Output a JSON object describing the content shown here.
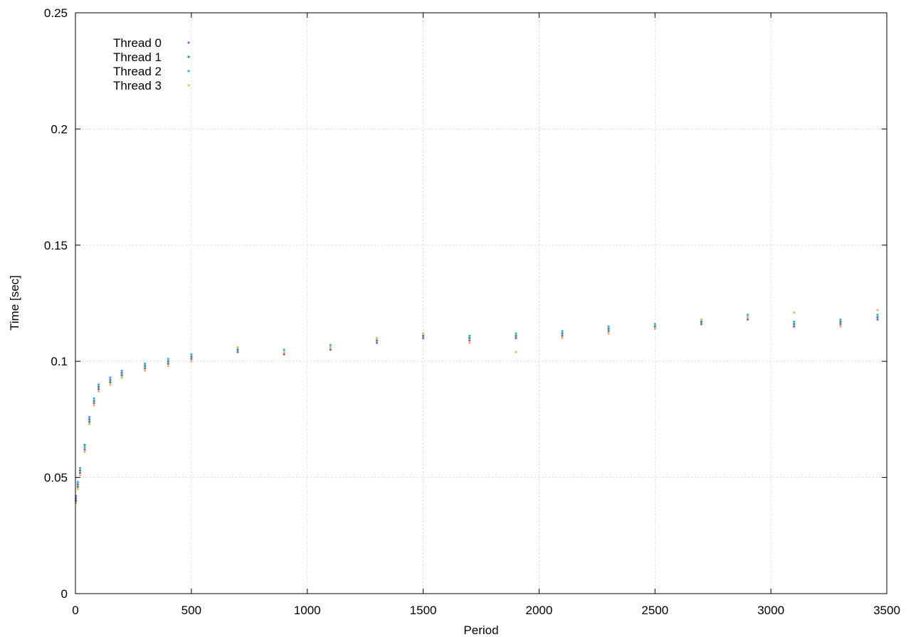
{
  "chart_data": {
    "type": "scatter",
    "xlabel": "Period",
    "ylabel": "Time [sec]",
    "xlim": [
      0,
      3500
    ],
    "ylim": [
      0,
      0.25
    ],
    "xticks": [
      0,
      500,
      1000,
      1500,
      2000,
      2500,
      3000,
      3500
    ],
    "yticks": [
      0,
      0.05,
      0.1,
      0.15,
      0.2,
      0.25
    ],
    "ytick_labels": [
      "0",
      "0.05",
      "0.1",
      "0.15",
      "0.2",
      "0.25"
    ],
    "grid": true,
    "legend_position": "top-left",
    "series": [
      {
        "name": "Thread 0",
        "color": "#9b59d0",
        "points": [
          [
            2,
            0.041
          ],
          [
            10,
            0.047
          ],
          [
            20,
            0.052
          ],
          [
            40,
            0.062
          ],
          [
            60,
            0.075
          ],
          [
            80,
            0.082
          ],
          [
            100,
            0.088
          ],
          [
            150,
            0.092
          ],
          [
            200,
            0.095
          ],
          [
            300,
            0.097
          ],
          [
            400,
            0.099
          ],
          [
            500,
            0.101
          ],
          [
            700,
            0.104
          ],
          [
            900,
            0.103
          ],
          [
            1100,
            0.105
          ],
          [
            1300,
            0.108
          ],
          [
            1500,
            0.11
          ],
          [
            1700,
            0.109
          ],
          [
            1900,
            0.11
          ],
          [
            2100,
            0.111
          ],
          [
            2300,
            0.113
          ],
          [
            2500,
            0.114
          ],
          [
            2700,
            0.116
          ],
          [
            2900,
            0.118
          ],
          [
            3100,
            0.115
          ],
          [
            3300,
            0.116
          ],
          [
            3460,
            0.118
          ]
        ]
      },
      {
        "name": "Thread 1",
        "color": "#2a9d6a",
        "points": [
          [
            2,
            0.04
          ],
          [
            10,
            0.046
          ],
          [
            20,
            0.053
          ],
          [
            40,
            0.064
          ],
          [
            60,
            0.074
          ],
          [
            80,
            0.083
          ],
          [
            100,
            0.089
          ],
          [
            150,
            0.091
          ],
          [
            200,
            0.094
          ],
          [
            300,
            0.098
          ],
          [
            400,
            0.1
          ],
          [
            500,
            0.102
          ],
          [
            700,
            0.105
          ],
          [
            900,
            0.104
          ],
          [
            1100,
            0.106
          ],
          [
            1300,
            0.109
          ],
          [
            1500,
            0.111
          ],
          [
            1700,
            0.11
          ],
          [
            1900,
            0.111
          ],
          [
            2100,
            0.112
          ],
          [
            2300,
            0.114
          ],
          [
            2500,
            0.115
          ],
          [
            2700,
            0.117
          ],
          [
            2900,
            0.119
          ],
          [
            3100,
            0.116
          ],
          [
            3300,
            0.117
          ],
          [
            3460,
            0.119
          ]
        ]
      },
      {
        "name": "Thread 2",
        "color": "#3ab0e2",
        "points": [
          [
            2,
            0.042
          ],
          [
            10,
            0.048
          ],
          [
            20,
            0.054
          ],
          [
            40,
            0.063
          ],
          [
            60,
            0.076
          ],
          [
            80,
            0.084
          ],
          [
            100,
            0.09
          ],
          [
            150,
            0.093
          ],
          [
            200,
            0.096
          ],
          [
            300,
            0.099
          ],
          [
            400,
            0.101
          ],
          [
            500,
            0.103
          ],
          [
            700,
            0.106
          ],
          [
            900,
            0.105
          ],
          [
            1100,
            0.107
          ],
          [
            1300,
            0.11
          ],
          [
            1500,
            0.112
          ],
          [
            1700,
            0.111
          ],
          [
            1900,
            0.112
          ],
          [
            2100,
            0.113
          ],
          [
            2300,
            0.115
          ],
          [
            2500,
            0.116
          ],
          [
            2700,
            0.118
          ],
          [
            2900,
            0.12
          ],
          [
            3100,
            0.117
          ],
          [
            3300,
            0.118
          ],
          [
            3460,
            0.12
          ]
        ]
      },
      {
        "name": "Thread 3",
        "color": "#f0b860",
        "points": [
          [
            2,
            0.039
          ],
          [
            10,
            0.045
          ],
          [
            20,
            0.051
          ],
          [
            40,
            0.061
          ],
          [
            60,
            0.073
          ],
          [
            80,
            0.081
          ],
          [
            100,
            0.087
          ],
          [
            150,
            0.09
          ],
          [
            200,
            0.093
          ],
          [
            300,
            0.096
          ],
          [
            400,
            0.098
          ],
          [
            500,
            0.1
          ],
          [
            700,
            0.106
          ],
          [
            900,
            0.104
          ],
          [
            1100,
            0.106
          ],
          [
            1300,
            0.11
          ],
          [
            1500,
            0.112
          ],
          [
            1700,
            0.108
          ],
          [
            1900,
            0.104
          ],
          [
            2100,
            0.11
          ],
          [
            2300,
            0.112
          ],
          [
            2500,
            0.114
          ],
          [
            2700,
            0.118
          ],
          [
            2900,
            0.119
          ],
          [
            3100,
            0.121
          ],
          [
            3300,
            0.115
          ],
          [
            3460,
            0.122
          ]
        ]
      }
    ]
  }
}
